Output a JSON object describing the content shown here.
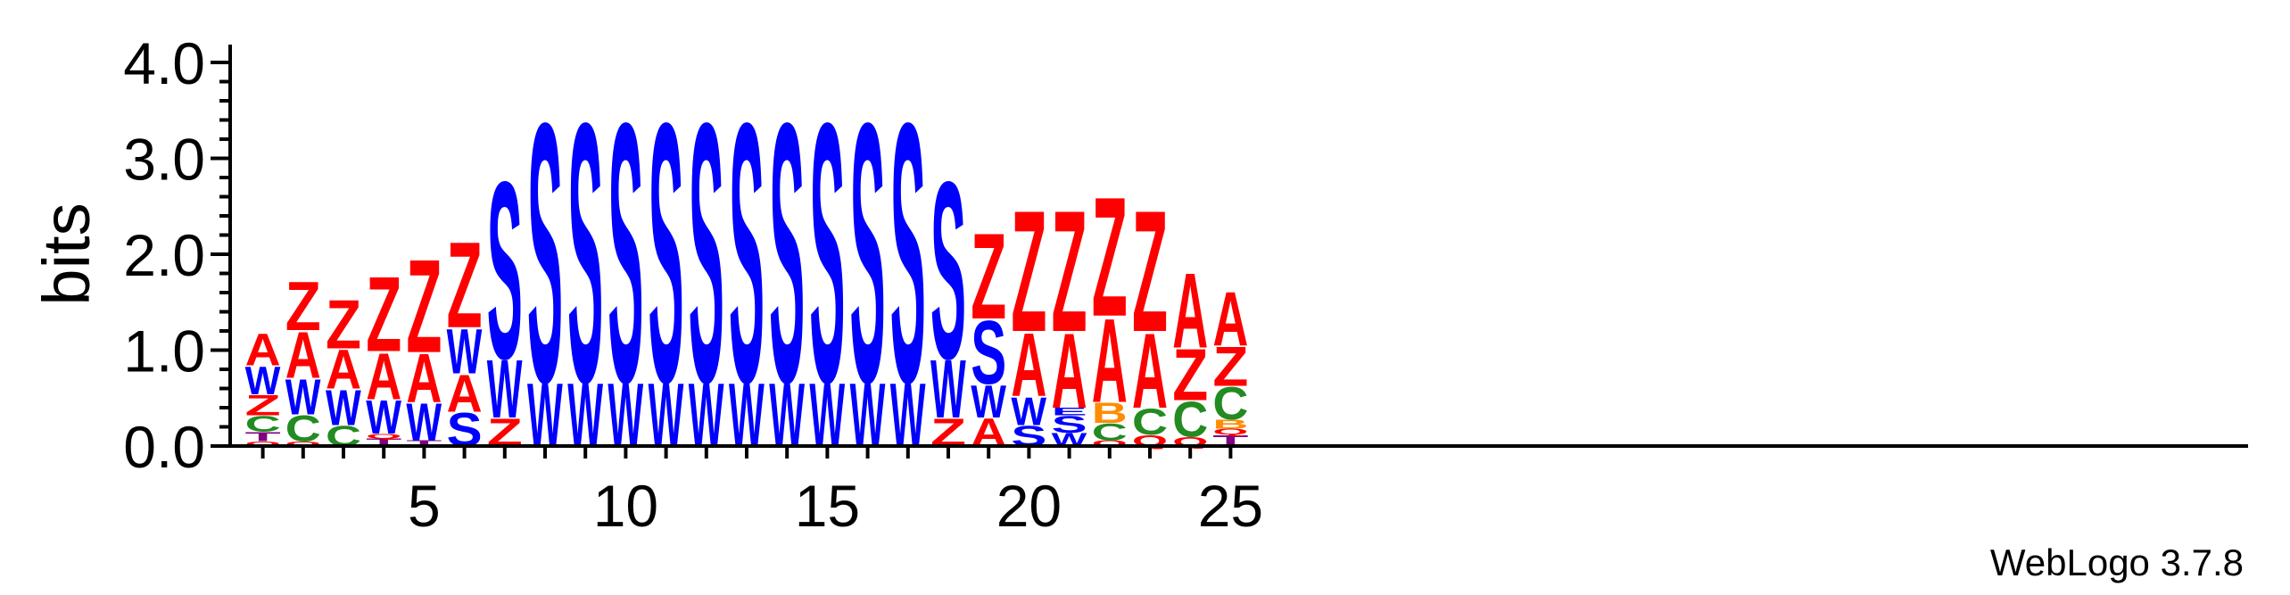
{
  "chart_data": {
    "type": "sequence-logo",
    "ylabel": "bits",
    "ylim": [
      0,
      4
    ],
    "yticks": [
      "0.0",
      "1.0",
      "2.0",
      "3.0",
      "4.0"
    ],
    "x_tick_labels": [
      "5",
      "10",
      "15",
      "20",
      "25"
    ],
    "x_tick_positions": [
      5,
      10,
      15,
      20,
      25
    ],
    "software_credit": "WebLogo 3.7.8",
    "colors": {
      "Z": "#ff0000",
      "A": "#ff0000",
      "S": "#0000ff",
      "W": "#0000ff",
      "C": "#228b22",
      "B": "#ff8c00",
      "T": "#800080",
      "Q": "#ff0000",
      "N": "#ff0000",
      "V": "#228b22",
      "E": "#0000ff"
    },
    "positions": [
      {
        "x": 1,
        "stack": [
          {
            "l": "Q",
            "h": 0.05
          },
          {
            "l": "T",
            "h": 0.1
          },
          {
            "l": "C",
            "h": 0.17
          },
          {
            "l": "Z",
            "h": 0.22
          },
          {
            "l": "W",
            "h": 0.3
          },
          {
            "l": "A",
            "h": 0.34
          }
        ]
      },
      {
        "x": 2,
        "stack": [
          {
            "l": "Q",
            "h": 0.05
          },
          {
            "l": "C",
            "h": 0.28
          },
          {
            "l": "W",
            "h": 0.38
          },
          {
            "l": "A",
            "h": 0.5
          },
          {
            "l": "Z",
            "h": 0.52
          }
        ]
      },
      {
        "x": 3,
        "stack": [
          {
            "l": "C",
            "h": 0.22
          },
          {
            "l": "W",
            "h": 0.38
          },
          {
            "l": "A",
            "h": 0.42
          },
          {
            "l": "Z",
            "h": 0.52
          }
        ]
      },
      {
        "x": 4,
        "stack": [
          {
            "l": "T",
            "h": 0.08
          },
          {
            "l": "Q",
            "h": 0.05
          },
          {
            "l": "W",
            "h": 0.36
          },
          {
            "l": "A",
            "h": 0.5
          },
          {
            "l": "Z",
            "h": 0.8
          }
        ]
      },
      {
        "x": 5,
        "stack": [
          {
            "l": "T",
            "h": 0.06
          },
          {
            "l": "W",
            "h": 0.4
          },
          {
            "l": "A",
            "h": 0.52
          },
          {
            "l": "Z",
            "h": 1.0
          }
        ]
      },
      {
        "x": 6,
        "stack": [
          {
            "l": "S",
            "h": 0.36
          },
          {
            "l": "A",
            "h": 0.4
          },
          {
            "l": "W",
            "h": 0.48
          },
          {
            "l": "Z",
            "h": 0.92
          }
        ]
      },
      {
        "x": 7,
        "stack": [
          {
            "l": "Z",
            "h": 0.3
          },
          {
            "l": "W",
            "h": 0.62
          },
          {
            "l": "S",
            "h": 1.9
          }
        ]
      },
      {
        "x": 8,
        "stack": [
          {
            "l": "W",
            "h": 0.68
          },
          {
            "l": "S",
            "h": 2.78
          }
        ]
      },
      {
        "x": 9,
        "stack": [
          {
            "l": "W",
            "h": 0.68
          },
          {
            "l": "S",
            "h": 2.78
          }
        ]
      },
      {
        "x": 10,
        "stack": [
          {
            "l": "W",
            "h": 0.68
          },
          {
            "l": "S",
            "h": 2.78
          }
        ]
      },
      {
        "x": 11,
        "stack": [
          {
            "l": "W",
            "h": 0.68
          },
          {
            "l": "S",
            "h": 2.78
          }
        ]
      },
      {
        "x": 12,
        "stack": [
          {
            "l": "W",
            "h": 0.68
          },
          {
            "l": "S",
            "h": 2.78
          }
        ]
      },
      {
        "x": 13,
        "stack": [
          {
            "l": "W",
            "h": 0.68
          },
          {
            "l": "S",
            "h": 2.78
          }
        ]
      },
      {
        "x": 14,
        "stack": [
          {
            "l": "W",
            "h": 0.68
          },
          {
            "l": "S",
            "h": 2.78
          }
        ]
      },
      {
        "x": 15,
        "stack": [
          {
            "l": "W",
            "h": 0.68
          },
          {
            "l": "S",
            "h": 2.78
          }
        ]
      },
      {
        "x": 16,
        "stack": [
          {
            "l": "W",
            "h": 0.68
          },
          {
            "l": "S",
            "h": 2.78
          }
        ]
      },
      {
        "x": 17,
        "stack": [
          {
            "l": "W",
            "h": 0.68
          },
          {
            "l": "S",
            "h": 2.78
          }
        ]
      },
      {
        "x": 18,
        "stack": [
          {
            "l": "Z",
            "h": 0.3
          },
          {
            "l": "W",
            "h": 0.62
          },
          {
            "l": "S",
            "h": 1.9
          }
        ]
      },
      {
        "x": 19,
        "stack": [
          {
            "l": "A",
            "h": 0.3
          },
          {
            "l": "W",
            "h": 0.35
          },
          {
            "l": "S",
            "h": 0.68
          },
          {
            "l": "Z",
            "h": 0.92
          }
        ]
      },
      {
        "x": 20,
        "stack": [
          {
            "l": "S",
            "h": 0.22
          },
          {
            "l": "W",
            "h": 0.3
          },
          {
            "l": "A",
            "h": 0.68
          },
          {
            "l": "Z",
            "h": 1.3
          }
        ]
      },
      {
        "x": 21,
        "stack": [
          {
            "l": "W",
            "h": 0.14
          },
          {
            "l": "S",
            "h": 0.18
          },
          {
            "l": "E",
            "h": 0.08
          },
          {
            "l": "A",
            "h": 0.8
          },
          {
            "l": "Z",
            "h": 1.3
          }
        ]
      },
      {
        "x": 22,
        "stack": [
          {
            "l": "Q",
            "h": 0.06
          },
          {
            "l": "C",
            "h": 0.18
          },
          {
            "l": "B",
            "h": 0.22
          },
          {
            "l": "A",
            "h": 0.9
          },
          {
            "l": "Z",
            "h": 1.28
          }
        ]
      },
      {
        "x": 23,
        "stack": [
          {
            "l": "Q",
            "h": 0.12
          },
          {
            "l": "C",
            "h": 0.28
          },
          {
            "l": "A",
            "h": 0.8
          },
          {
            "l": "Z",
            "h": 1.3
          }
        ]
      },
      {
        "x": 24,
        "stack": [
          {
            "l": "Q",
            "h": 0.1
          },
          {
            "l": "C",
            "h": 0.38
          },
          {
            "l": "Z",
            "h": 0.55
          },
          {
            "l": "A",
            "h": 0.8
          }
        ]
      },
      {
        "x": 25,
        "stack": [
          {
            "l": "T",
            "h": 0.12
          },
          {
            "l": "Q",
            "h": 0.06
          },
          {
            "l": "B",
            "h": 0.1
          },
          {
            "l": "C",
            "h": 0.35
          },
          {
            "l": "Z",
            "h": 0.42
          },
          {
            "l": "A",
            "h": 0.58
          }
        ]
      }
    ]
  }
}
